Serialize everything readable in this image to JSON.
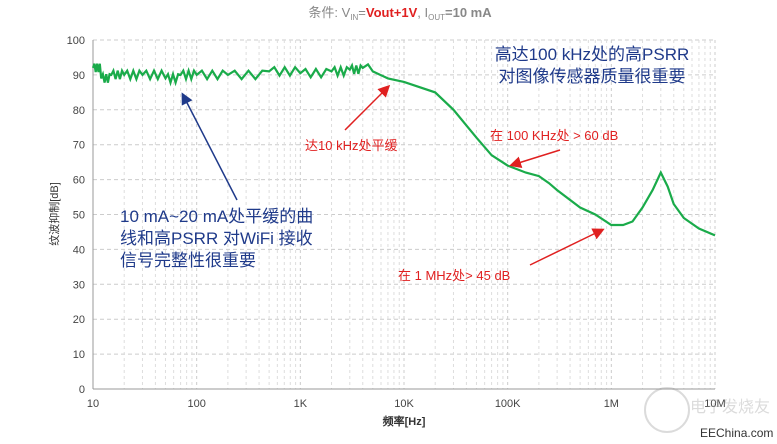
{
  "chart_data": {
    "type": "line",
    "title": {
      "prefix": "条件: V",
      "in_sub": "IN",
      "eq": "=",
      "vout": "Vout+1V",
      "sep": ", I",
      "out_sub": "OUT",
      "iout": "=10 mA"
    },
    "xlabel": "频率[Hz]",
    "ylabel": "纹波抑制[dB]",
    "xscale": "log",
    "xlim": [
      10,
      10000000
    ],
    "ylim": [
      0,
      100
    ],
    "xticks": [
      {
        "v": 10,
        "label": "10"
      },
      {
        "v": 100,
        "label": "100"
      },
      {
        "v": 1000,
        "label": "1K"
      },
      {
        "v": 10000,
        "label": "10K"
      },
      {
        "v": 100000,
        "label": "100K"
      },
      {
        "v": 1000000,
        "label": "1M"
      },
      {
        "v": 10000000,
        "label": "10M"
      }
    ],
    "yticks": [
      0,
      10,
      20,
      30,
      40,
      50,
      60,
      70,
      80,
      90,
      100
    ],
    "grid": true,
    "series": [
      {
        "name": "PSRR",
        "color": "#1aab4a",
        "x": [
          10,
          12,
          15,
          20,
          30,
          50,
          70,
          100,
          200,
          500,
          1000,
          2000,
          3000,
          4000,
          4500,
          5000,
          7000,
          10000,
          20000,
          30000,
          50000,
          70000,
          100000,
          150000,
          200000,
          250000,
          300000,
          500000,
          700000,
          1000000,
          1300000,
          1600000,
          2000000,
          2500000,
          3000000,
          3500000,
          4000000,
          5000000,
          7000000,
          10000000
        ],
        "y": [
          92,
          89,
          90,
          90,
          90,
          89,
          90,
          90,
          90,
          91,
          90.5,
          91,
          91.5,
          92,
          93,
          91,
          89,
          88,
          85,
          80,
          72,
          67,
          64,
          62,
          61,
          59,
          57,
          52,
          50,
          47,
          47,
          48,
          52,
          57,
          62,
          58,
          53,
          49,
          46,
          44
        ]
      }
    ],
    "annotations": [
      {
        "text_lines": [
          "高达100 kHz处的高PSRR",
          "对图像传感器质量很重要"
        ],
        "color": "#1f3a8a"
      },
      {
        "text_lines": [
          "10 mA~20 mA处平缓的曲",
          "线和高PSRR 对WiFi 接收",
          "信号完整性很重要"
        ],
        "color": "#1f3a8a"
      },
      {
        "text_lines": [
          "达10 kHz处平缓"
        ],
        "color": "#e02020"
      },
      {
        "text_lines": [
          "在 100 KHz处 > 60 dB"
        ],
        "color": "#e02020"
      },
      {
        "text_lines": [
          "在 1 MHz处> 45 dB"
        ],
        "color": "#e02020"
      }
    ]
  },
  "watermark": {
    "logo_text": "电子发烧友",
    "site": "EEChina.com"
  }
}
